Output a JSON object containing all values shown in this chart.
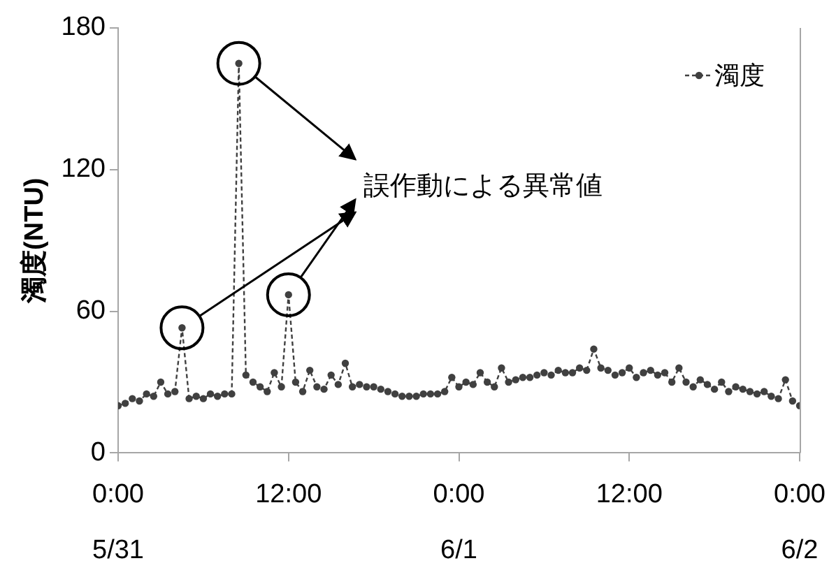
{
  "chart_data": {
    "type": "line",
    "ylabel": "濁度(NTU)",
    "xlim": [
      "--05-31T00:00",
      "--06-02T00:00"
    ],
    "xticks": [
      {
        "value": "--05-31T00:00",
        "label": "0:00\n5/31"
      },
      {
        "value": "--05-31T12:00",
        "label": "12:00"
      },
      {
        "value": "--06-01T00:00",
        "label": "0:00\n6/1"
      },
      {
        "value": "--06-01T12:00",
        "label": "12:00"
      },
      {
        "value": "--06-02T00:00",
        "label": "0:00\n6/2"
      }
    ],
    "ylim": [
      0,
      180
    ],
    "yticks": [
      0,
      60,
      120,
      180
    ],
    "grid": false,
    "legend": "top right",
    "marker": "circle",
    "line_style": "dashed",
    "annotations": [
      "誤作動による異常値"
    ],
    "x": [
      "--05-31T00:00",
      "--05-31T00:30",
      "--05-31T01:00",
      "--05-31T01:30",
      "--05-31T02:00",
      "--05-31T02:30",
      "--05-31T03:00",
      "--05-31T03:30",
      "--05-31T04:00",
      "--05-31T04:30",
      "--05-31T05:00",
      "--05-31T05:30",
      "--05-31T06:00",
      "--05-31T06:30",
      "--05-31T07:00",
      "--05-31T07:30",
      "--05-31T08:00",
      "--05-31T08:30",
      "--05-31T09:00",
      "--05-31T09:30",
      "--05-31T10:00",
      "--05-31T10:30",
      "--05-31T11:00",
      "--05-31T11:30",
      "--05-31T12:00",
      "--05-31T12:30",
      "--05-31T13:00",
      "--05-31T13:30",
      "--05-31T14:00",
      "--05-31T14:30",
      "--05-31T15:00",
      "--05-31T15:30",
      "--05-31T16:00",
      "--05-31T16:30",
      "--05-31T17:00",
      "--05-31T17:30",
      "--05-31T18:00",
      "--05-31T18:30",
      "--05-31T19:00",
      "--05-31T19:30",
      "--05-31T20:00",
      "--05-31T20:30",
      "--05-31T21:00",
      "--05-31T21:30",
      "--05-31T22:00",
      "--05-31T22:30",
      "--05-31T23:00",
      "--05-31T23:30",
      "--06-01T00:00",
      "--06-01T00:30",
      "--06-01T01:00",
      "--06-01T01:30",
      "--06-01T02:00",
      "--06-01T02:30",
      "--06-01T03:00",
      "--06-01T03:30",
      "--06-01T04:00",
      "--06-01T04:30",
      "--06-01T05:00",
      "--06-01T05:30",
      "--06-01T06:00",
      "--06-01T06:30",
      "--06-01T07:00",
      "--06-01T07:30",
      "--06-01T08:00",
      "--06-01T08:30",
      "--06-01T09:00",
      "--06-01T09:30",
      "--06-01T10:00",
      "--06-01T10:30",
      "--06-01T11:00",
      "--06-01T11:30",
      "--06-01T12:00",
      "--06-01T12:30",
      "--06-01T13:00",
      "--06-01T13:30",
      "--06-01T14:00",
      "--06-01T14:30",
      "--06-01T15:00",
      "--06-01T15:30",
      "--06-01T16:00",
      "--06-01T16:30",
      "--06-01T17:00",
      "--06-01T17:30",
      "--06-01T18:00",
      "--06-01T18:30",
      "--06-01T19:00",
      "--06-01T19:30",
      "--06-01T20:00",
      "--06-01T20:30",
      "--06-01T21:00",
      "--06-01T21:30",
      "--06-01T22:00",
      "--06-01T22:30",
      "--06-01T23:00",
      "--06-01T23:30",
      "--06-02T00:00"
    ],
    "series": [
      {
        "name": "濁度",
        "color": "#404040",
        "values": [
          20,
          21,
          23,
          22,
          25,
          24,
          30,
          25,
          26,
          53,
          23,
          24,
          23,
          25,
          24,
          25,
          25,
          165,
          33,
          30,
          28,
          26,
          34,
          28,
          67,
          30,
          26,
          35,
          28,
          27,
          33,
          29,
          38,
          28,
          29,
          28,
          28,
          27,
          26,
          25,
          24,
          24,
          24,
          25,
          25,
          25,
          26,
          32,
          28,
          30,
          29,
          34,
          30,
          28,
          36,
          30,
          31,
          32,
          32,
          33,
          34,
          33,
          35,
          34,
          34,
          36,
          35,
          44,
          36,
          35,
          33,
          34,
          36,
          32,
          34,
          35,
          33,
          34,
          30,
          36,
          30,
          28,
          31,
          29,
          27,
          30,
          26,
          28,
          27,
          26,
          25,
          26,
          24,
          23,
          31,
          22,
          20
        ]
      }
    ]
  }
}
